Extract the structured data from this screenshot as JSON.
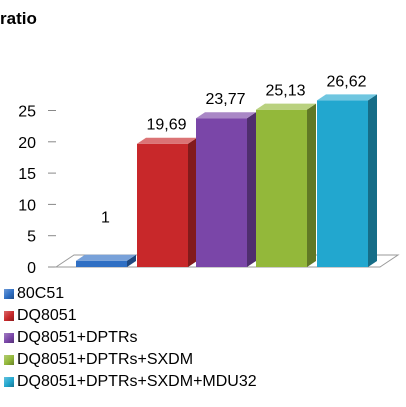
{
  "chart_data": {
    "type": "bar",
    "title": "ratio",
    "categories": [
      "80C51",
      "DQ8051",
      "DQ8051+DPTRs",
      "DQ8051+DPTRs+SXDM",
      "DQ8051+DPTRs+SXDM+MDU32"
    ],
    "values": [
      1,
      19.69,
      23.77,
      25.13,
      26.62
    ],
    "data_labels": [
      "1",
      "19,69",
      "23,77",
      "25,13",
      "26,62"
    ],
    "y_ticks": [
      "0",
      "5",
      "10",
      "15",
      "20",
      "25"
    ],
    "ylim": [
      0,
      25
    ],
    "colors": [
      "#2f6fc4",
      "#c8282a",
      "#7a46a8",
      "#93b83a",
      "#22a7cf"
    ],
    "legend_position": "bottom-left",
    "grid": false,
    "style": "3d-columns"
  }
}
